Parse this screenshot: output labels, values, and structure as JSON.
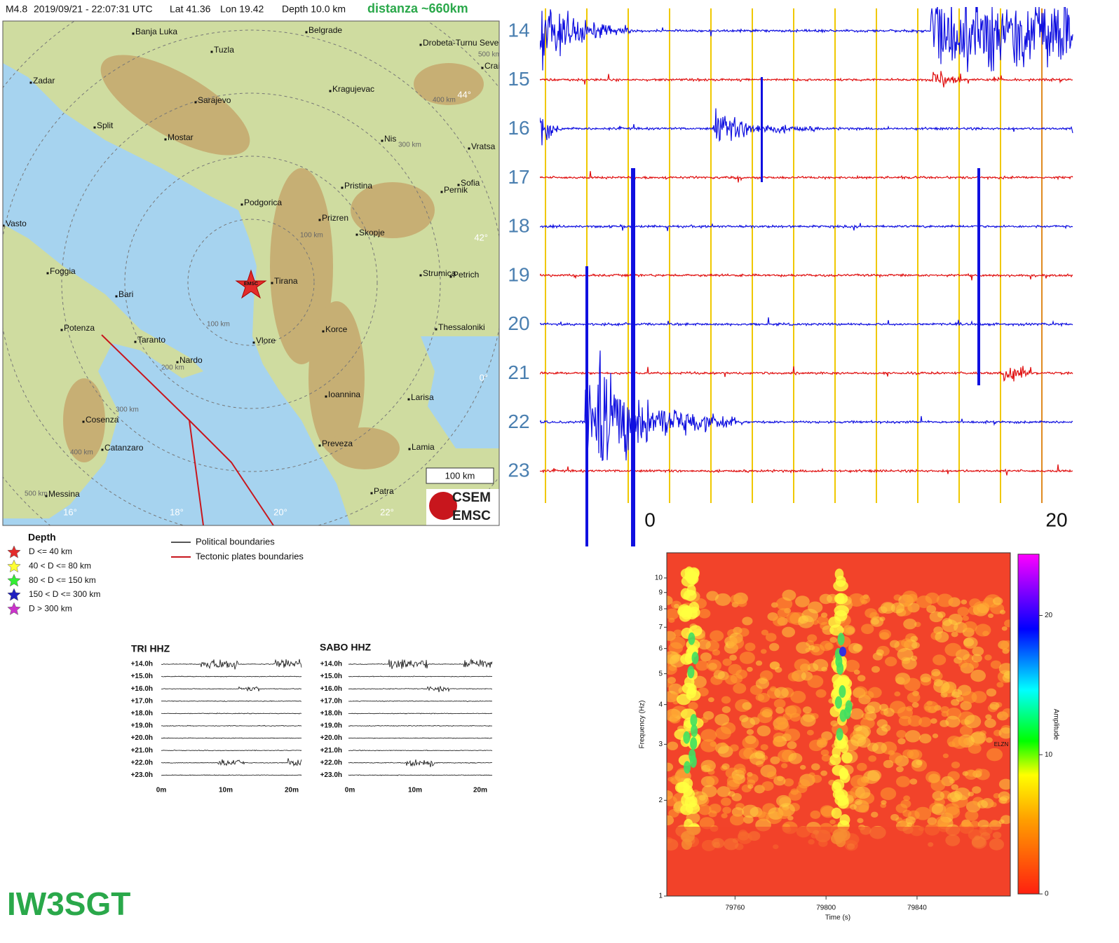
{
  "header": {
    "magnitude": "M4.8",
    "datetime": "2019/09/21 - 22:07:31 UTC",
    "lat": "Lat 41.36",
    "lon": "Lon 19.42",
    "depth": "Depth 10.0 km",
    "distance": "distanza ~660km"
  },
  "map": {
    "cities": [
      "Banja Luka",
      "Belgrade",
      "Tuzla",
      "Drobeta-Turnu Seve",
      "Zadar",
      "Kragujevac",
      "Crai",
      "Sarajevo",
      "Split",
      "Mostar",
      "Nis",
      "Vratsa",
      "Pristina",
      "Sofia",
      "Pernik",
      "Podgorica",
      "Vasto",
      "Prizren",
      "Skopje",
      "Foggia",
      "Strumica",
      "Petrich",
      "Tirana",
      "Bari",
      "Potenza",
      "Korce",
      "Thessaloniki",
      "Taranto",
      "Vlore",
      "Nardo",
      "Ioannina",
      "Larisa",
      "Cosenza",
      "Preveza",
      "Catanzaro",
      "Lamia",
      "Messina",
      "Patra"
    ],
    "grid_labels": [
      "44°",
      "42°",
      "0°",
      "16°",
      "18°",
      "20°",
      "22°"
    ],
    "ring_labels": [
      "100 km",
      "200 km",
      "300 km",
      "400 km",
      "500 km",
      "300 km",
      "400 km",
      "500 km",
      "100 km"
    ],
    "scale": "100 km",
    "logo": [
      "CSEM",
      "EMSC"
    ],
    "epicenter": "EMSC"
  },
  "legend": {
    "depth_title": "Depth",
    "depth_items": [
      "D <= 40 km",
      "40 < D <= 80 km",
      "80 < D <= 150 km",
      "150 < D <= 300 km",
      "D > 300 km"
    ],
    "line_items": [
      "Political boundaries",
      "Tectonic plates boundaries"
    ]
  },
  "helicorder": {
    "hours": [
      14,
      15,
      16,
      17,
      18,
      19,
      20,
      21,
      22,
      23
    ],
    "x_labels": [
      "0",
      "20"
    ]
  },
  "mini_helicorders": [
    {
      "title": "TRI HHZ",
      "hours": [
        "+14.0h",
        "+15.0h",
        "+16.0h",
        "+17.0h",
        "+18.0h",
        "+19.0h",
        "+20.0h",
        "+21.0h",
        "+22.0h",
        "+23.0h"
      ],
      "x_labels": [
        "0m",
        "10m",
        "20m"
      ]
    },
    {
      "title": "SABO HHZ",
      "hours": [
        "+14.0h",
        "+15.0h",
        "+16.0h",
        "+17.0h",
        "+18.0h",
        "+19.0h",
        "+20.0h",
        "+21.0h",
        "+22.0h",
        "+23.0h"
      ],
      "x_labels": [
        "0m",
        "10m",
        "20m"
      ]
    }
  ],
  "spectrogram": {
    "yticks": [
      1,
      2,
      3,
      4,
      5,
      6,
      7,
      8,
      9,
      10
    ],
    "ylim": [
      1,
      12
    ],
    "xticks": [
      79760,
      79800,
      79840
    ],
    "xlim": [
      79730,
      79881
    ],
    "xlabel": "Time (s)",
    "ylabel": "Frequency (Hz)",
    "channel": "ELZN",
    "colorbar": {
      "ticks": [
        0,
        10,
        20
      ],
      "lim": [
        0,
        24.4
      ],
      "label": "Amplitude"
    }
  },
  "footer": {
    "callsign": "IW3SGT"
  }
}
